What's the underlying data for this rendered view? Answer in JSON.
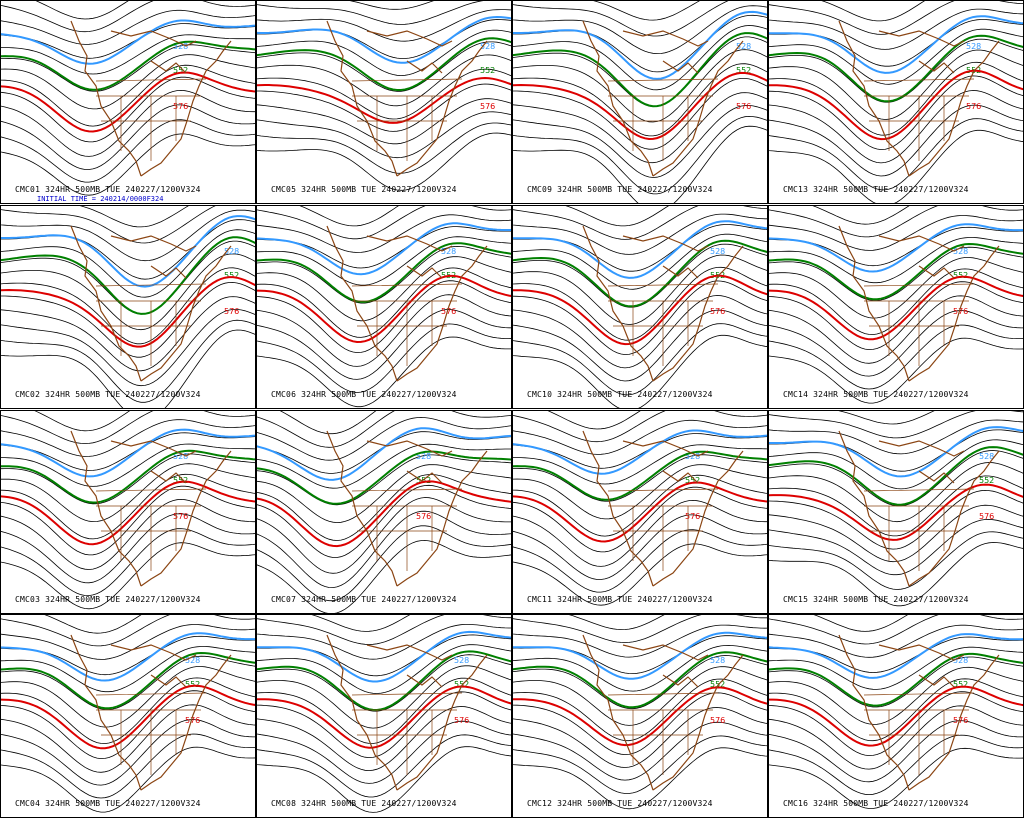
{
  "initial_time": "INITIAL TIME = 240214/0000F324",
  "colors": {
    "contour": "#000000",
    "line_528": "#3399ff",
    "line_552": "#008000",
    "line_576": "#dd0000",
    "coast": "#8b4513",
    "initial_text": "#0000cc"
  },
  "contour_labels": {
    "blue": "528",
    "green": "552",
    "red": "576"
  },
  "panels": [
    {
      "id": "CMC01",
      "caption": "CMC01 324HR 500MB TUE 240227/1200V324",
      "trough": 0.35,
      "amp": 0.3
    },
    {
      "id": "CMC05",
      "caption": "CMC05 324HR 500MB TUE 240227/1200V324",
      "trough": 0.55,
      "amp": 0.2
    },
    {
      "id": "CMC09",
      "caption": "CMC09 324HR 500MB TUE 240227/1200V324",
      "trough": 0.55,
      "amp": 0.5
    },
    {
      "id": "CMC13",
      "caption": "CMC13 324HR 500MB TUE 240227/1200V324",
      "trough": 0.45,
      "amp": 0.45
    },
    {
      "id": "CMC02",
      "caption": "CMC02 324HR 500MB TUE 240227/1200V324",
      "trough": 0.55,
      "amp": 0.55
    },
    {
      "id": "CMC06",
      "caption": "CMC06 324HR 500MB TUE 240227/1200V324",
      "trough": 0.4,
      "amp": 0.4
    },
    {
      "id": "CMC10",
      "caption": "CMC10 324HR 500MB TUE 240227/1200V324",
      "trough": 0.45,
      "amp": 0.45
    },
    {
      "id": "CMC14",
      "caption": "CMC14 324HR 500MB TUE 240227/1200V324",
      "trough": 0.4,
      "amp": 0.35
    },
    {
      "id": "CMC03",
      "caption": "CMC03 324HR 500MB TUE 240227/1200V324",
      "trough": 0.35,
      "amp": 0.35
    },
    {
      "id": "CMC07",
      "caption": "CMC07 324HR 500MB TUE 240227/1200V324",
      "trough": 0.3,
      "amp": 0.4
    },
    {
      "id": "CMC11",
      "caption": "CMC11 324HR 500MB TUE 240227/1200V324",
      "trough": 0.35,
      "amp": 0.3
    },
    {
      "id": "CMC15",
      "caption": "CMC15 324HR 500MB TUE 240227/1200V324",
      "trough": 0.5,
      "amp": 0.3
    },
    {
      "id": "CMC04",
      "caption": "CMC04 324HR 500MB TUE 240227/1200V324",
      "trough": 0.4,
      "amp": 0.35
    },
    {
      "id": "CMC08",
      "caption": "CMC08 324HR 500MB TUE 240227/1200V324",
      "trough": 0.45,
      "amp": 0.35
    },
    {
      "id": "CMC12",
      "caption": "CMC12 324HR 500MB TUE 240227/1200V324",
      "trough": 0.45,
      "amp": 0.3
    },
    {
      "id": "CMC16",
      "caption": "CMC16 324HR 500MB TUE 240227/1200V324",
      "trough": 0.4,
      "amp": 0.3
    }
  ]
}
